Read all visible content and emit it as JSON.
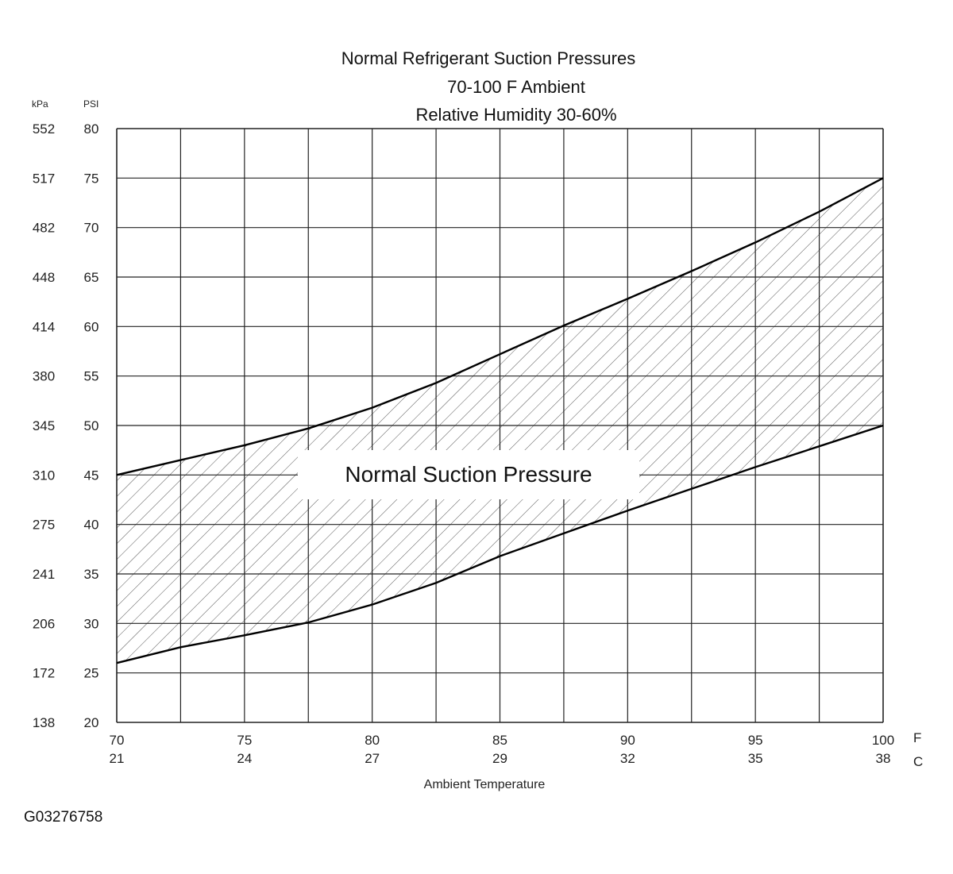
{
  "chart_data": {
    "type": "area",
    "title": [
      "Normal  Refrigerant  Suction  Pressures",
      "70-100 F Ambient",
      "Relative Humidity 30-60%"
    ],
    "xlabel": "Ambient Temperature",
    "x_units": [
      "F",
      "C"
    ],
    "y_units": [
      "kPa",
      "PSI"
    ],
    "xlim": [
      70,
      100
    ],
    "ylim": [
      20,
      80
    ],
    "grid": true,
    "x_ticks": [
      {
        "f": "70",
        "c": "21"
      },
      {
        "f": "75",
        "c": "24"
      },
      {
        "f": "80",
        "c": "27"
      },
      {
        "f": "85",
        "c": "29"
      },
      {
        "f": "90",
        "c": "32"
      },
      {
        "f": "95",
        "c": "35"
      },
      {
        "f": "100",
        "c": "38"
      }
    ],
    "y_ticks": [
      {
        "psi": "80",
        "kpa": "552"
      },
      {
        "psi": "75",
        "kpa": "517"
      },
      {
        "psi": "70",
        "kpa": "482"
      },
      {
        "psi": "65",
        "kpa": "448"
      },
      {
        "psi": "60",
        "kpa": "414"
      },
      {
        "psi": "55",
        "kpa": "380"
      },
      {
        "psi": "50",
        "kpa": "345"
      },
      {
        "psi": "45",
        "kpa": "310"
      },
      {
        "psi": "40",
        "kpa": "275"
      },
      {
        "psi": "35",
        "kpa": "241"
      },
      {
        "psi": "30",
        "kpa": "206"
      },
      {
        "psi": "25",
        "kpa": "172"
      },
      {
        "psi": "20",
        "kpa": "138"
      }
    ],
    "upper_bound": {
      "x": [
        70,
        72.5,
        75,
        77.5,
        80,
        82.5,
        85,
        87.5,
        90,
        92.5,
        95,
        97.5,
        100
      ],
      "y": [
        45,
        46.5,
        48,
        49.7,
        51.8,
        54.3,
        57.2,
        60.1,
        62.8,
        65.6,
        68.5,
        71.6,
        75
      ]
    },
    "lower_bound": {
      "x": [
        70,
        72.5,
        75,
        77.5,
        80,
        82.5,
        85,
        87.5,
        90,
        92.5,
        95,
        97.5,
        100
      ],
      "y": [
        26,
        27.6,
        28.8,
        30.1,
        31.9,
        34.1,
        36.8,
        39.1,
        41.4,
        43.6,
        45.8,
        47.9,
        50
      ]
    },
    "band_label": "Normal Suction Pressure"
  },
  "figure_id": "G03276758"
}
